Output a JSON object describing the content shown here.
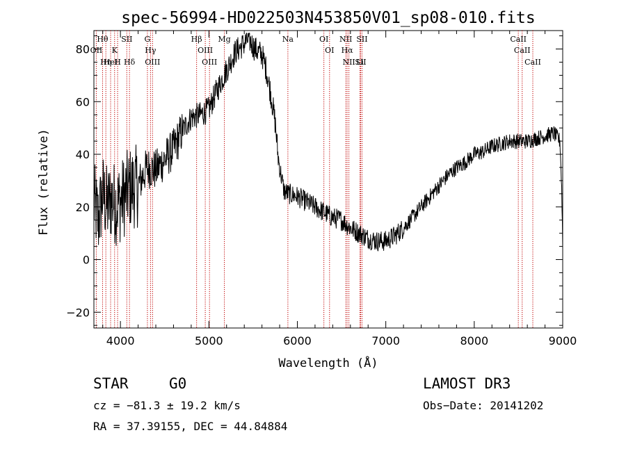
{
  "chart_data": {
    "type": "line",
    "title": "spec-56994-HD022503N453850V01_sp08-010.fits",
    "xlabel": "Wavelength (Å)",
    "ylabel": "Flux (relative)",
    "xlim": [
      3700,
      9000
    ],
    "ylim": [
      -26,
      87
    ],
    "x_ticks": [
      4000,
      5000,
      6000,
      7000,
      8000,
      9000
    ],
    "y_ticks": [
      -20,
      0,
      20,
      40,
      60,
      80
    ],
    "grid": false,
    "series": [
      {
        "name": "flux",
        "color": "#000000",
        "x": [
          3700,
          3750,
          3800,
          3850,
          3900,
          3950,
          4000,
          4100,
          4200,
          4300,
          4400,
          4500,
          4600,
          4700,
          4800,
          4900,
          5000,
          5100,
          5200,
          5300,
          5400,
          5450,
          5500,
          5550,
          5600,
          5650,
          5700,
          5750,
          5780,
          5800,
          5850,
          5900,
          6000,
          6100,
          6200,
          6300,
          6400,
          6500,
          6600,
          6700,
          6800,
          6900,
          7000,
          7100,
          7200,
          7300,
          7400,
          7500,
          7600,
          7700,
          7800,
          7900,
          8000,
          8100,
          8200,
          8300,
          8400,
          8500,
          8600,
          8700,
          8800,
          8900,
          8970,
          8990,
          9000
        ],
        "y": [
          22,
          15,
          25,
          20,
          23,
          21,
          22,
          27,
          28,
          35,
          34,
          38,
          42,
          49,
          54,
          55,
          57,
          65,
          72,
          79,
          82,
          84,
          81,
          79,
          78,
          72,
          63,
          52,
          40,
          35,
          26,
          25,
          24,
          22,
          20,
          18,
          16,
          15,
          12,
          10,
          8,
          7,
          7,
          9,
          12,
          16,
          20,
          24,
          28,
          32,
          35,
          37,
          40,
          41,
          43,
          44,
          45,
          45,
          45,
          46,
          47,
          48,
          45,
          25,
          5
        ]
      }
    ],
    "spectral_lines": [
      {
        "label": "Hθ",
        "wavelength": 3798
      },
      {
        "label": "OII",
        "wavelength": 3727
      },
      {
        "label": "Hη",
        "wavelength": 3835
      },
      {
        "label": "HeI",
        "wavelength": 3889
      },
      {
        "label": "K",
        "wavelength": 3934
      },
      {
        "label": "H",
        "wavelength": 3968
      },
      {
        "label": "SII",
        "wavelength": 4072
      },
      {
        "label": "Hδ",
        "wavelength": 4102
      },
      {
        "label": "G",
        "wavelength": 4305
      },
      {
        "label": "Hγ",
        "wavelength": 4340
      },
      {
        "label": "OIII",
        "wavelength": 4363
      },
      {
        "label": "Hβ",
        "wavelength": 4861
      },
      {
        "label": "OIII",
        "wavelength": 4959
      },
      {
        "label": "OIII",
        "wavelength": 5007
      },
      {
        "label": "Mg",
        "wavelength": 5175
      },
      {
        "label": "Na",
        "wavelength": 5893
      },
      {
        "label": "OI",
        "wavelength": 6300
      },
      {
        "label": "OI",
        "wavelength": 6364
      },
      {
        "label": "NII",
        "wavelength": 6548
      },
      {
        "label": "Hα",
        "wavelength": 6563
      },
      {
        "label": "NII",
        "wavelength": 6583
      },
      {
        "label": "Li",
        "wavelength": 6708
      },
      {
        "label": "SII",
        "wavelength": 6716
      },
      {
        "label": "SII",
        "wavelength": 6731
      },
      {
        "label": "CaII",
        "wavelength": 8498
      },
      {
        "label": "CaII",
        "wavelength": 8542
      },
      {
        "label": "CaII",
        "wavelength": 8662
      }
    ]
  },
  "info": {
    "class_label": "STAR",
    "subclass": "G0",
    "survey": "LAMOST DR3",
    "cz": "cz = −81.3 ± 19.2 km/s",
    "obs_date": "Obs−Date: 20141202",
    "coords": "RA =  37.39155, DEC =  44.84884"
  }
}
